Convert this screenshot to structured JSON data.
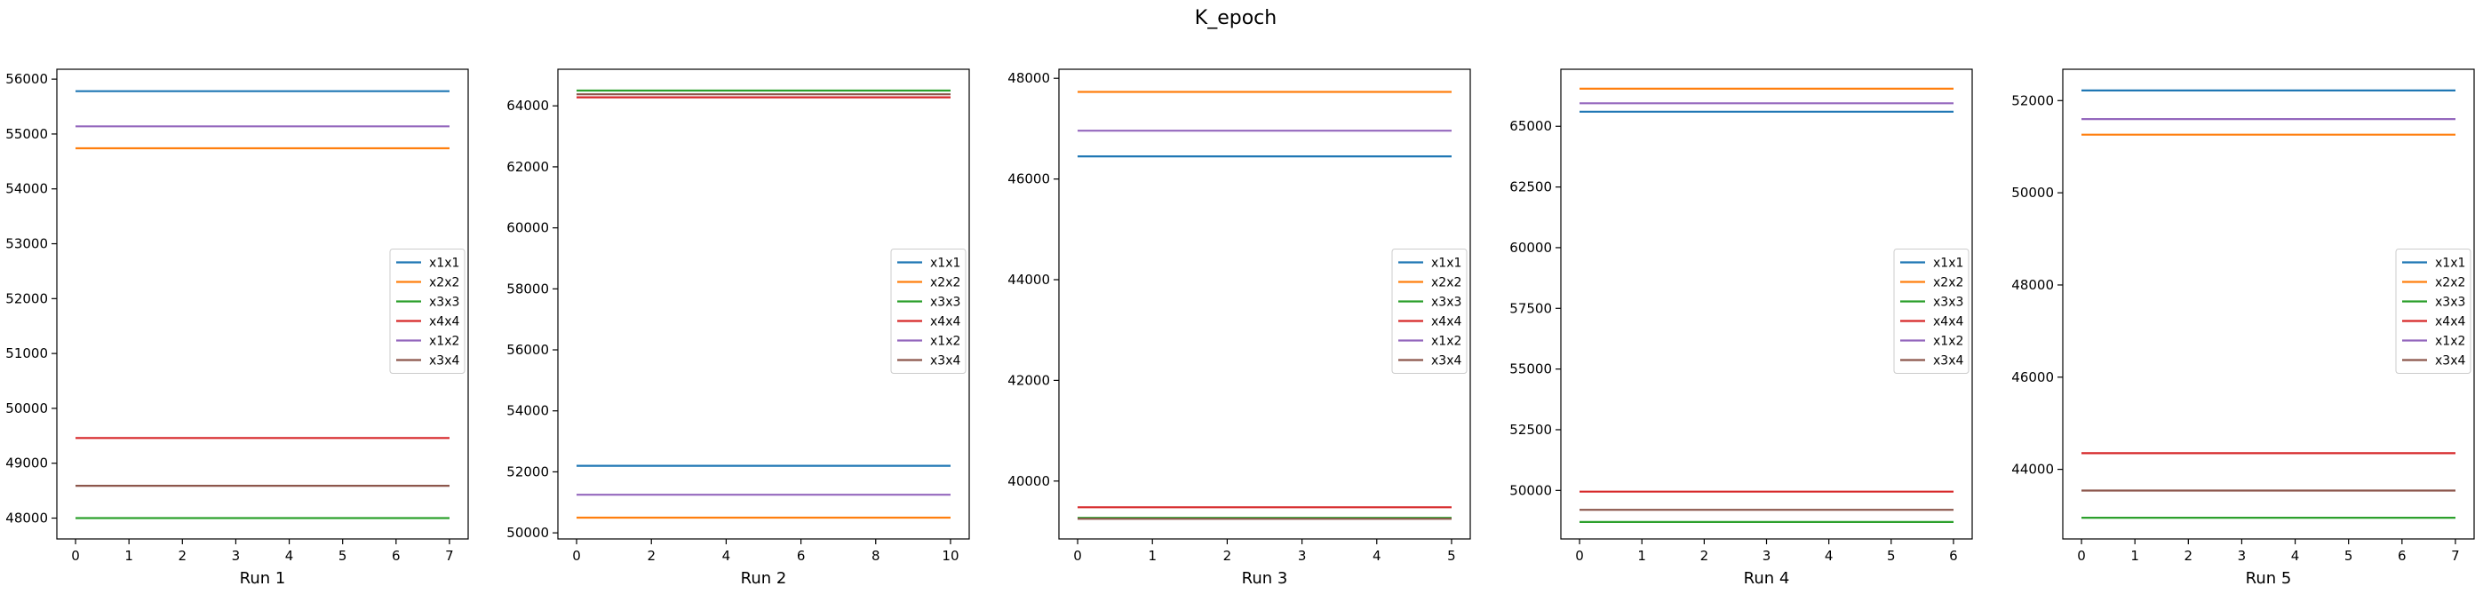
{
  "figure": {
    "title": "K_epoch"
  },
  "chart_data": [
    {
      "type": "line",
      "title": "",
      "xlabel": "Run 1",
      "ylabel": "",
      "x": [
        0,
        1,
        2,
        3,
        4,
        5,
        6,
        7
      ],
      "xticks": [
        0,
        1,
        2,
        3,
        4,
        5,
        6,
        7
      ],
      "yticks": [
        48000,
        49000,
        50000,
        51000,
        52000,
        53000,
        54000,
        55000,
        56000
      ],
      "ytick_labels": [
        "48000",
        "49000",
        "50000",
        "51000",
        "52000",
        "53000",
        "54000",
        "55000",
        "56000"
      ],
      "xlim": [
        -0.35,
        7.35
      ],
      "ylim": [
        47620,
        56180
      ],
      "legend": "center-right",
      "grid": false,
      "series": [
        {
          "name": "x1x1",
          "value": 55780,
          "color": "#1f77b4"
        },
        {
          "name": "x2x2",
          "value": 54740,
          "color": "#ff7f0e"
        },
        {
          "name": "x3x3",
          "value": 48000,
          "color": "#2ca02c"
        },
        {
          "name": "x4x4",
          "value": 49460,
          "color": "#d62728"
        },
        {
          "name": "x1x2",
          "value": 55140,
          "color": "#9467bd"
        },
        {
          "name": "x3x4",
          "value": 48590,
          "color": "#8c564b"
        }
      ]
    },
    {
      "type": "line",
      "title": "",
      "xlabel": "Run 2",
      "ylabel": "",
      "x": [
        0,
        1,
        2,
        3,
        4,
        5,
        6,
        7,
        8,
        9,
        10
      ],
      "xticks": [
        0,
        2,
        4,
        6,
        8,
        10
      ],
      "yticks": [
        50000,
        52000,
        54000,
        56000,
        58000,
        60000,
        62000,
        64000
      ],
      "ytick_labels": [
        "50000",
        "52000",
        "54000",
        "56000",
        "58000",
        "60000",
        "62000",
        "64000"
      ],
      "xlim": [
        -0.5,
        10.5
      ],
      "ylim": [
        49800,
        65200
      ],
      "legend": "center-right",
      "grid": false,
      "series": [
        {
          "name": "x1x1",
          "value": 52200,
          "color": "#1f77b4"
        },
        {
          "name": "x2x2",
          "value": 50500,
          "color": "#ff7f0e"
        },
        {
          "name": "x3x3",
          "value": 64500,
          "color": "#2ca02c"
        },
        {
          "name": "x4x4",
          "value": 64280,
          "color": "#d62728"
        },
        {
          "name": "x1x2",
          "value": 51250,
          "color": "#9467bd"
        },
        {
          "name": "x3x4",
          "value": 64380,
          "color": "#8c564b"
        }
      ]
    },
    {
      "type": "line",
      "title": "",
      "xlabel": "Run 3",
      "ylabel": "",
      "x": [
        0,
        1,
        2,
        3,
        4,
        5
      ],
      "xticks": [
        0,
        1,
        2,
        3,
        4,
        5
      ],
      "yticks": [
        40000,
        42000,
        44000,
        46000,
        48000
      ],
      "ytick_labels": [
        "40000",
        "42000",
        "44000",
        "46000",
        "48000"
      ],
      "xlim": [
        -0.25,
        5.25
      ],
      "ylim": [
        38850,
        48180
      ],
      "legend": "center-right",
      "grid": false,
      "series": [
        {
          "name": "x1x1",
          "value": 46450,
          "color": "#1f77b4"
        },
        {
          "name": "x2x2",
          "value": 47730,
          "color": "#ff7f0e"
        },
        {
          "name": "x3x3",
          "value": 39270,
          "color": "#2ca02c"
        },
        {
          "name": "x4x4",
          "value": 39480,
          "color": "#d62728"
        },
        {
          "name": "x1x2",
          "value": 46960,
          "color": "#9467bd"
        },
        {
          "name": "x3x4",
          "value": 39250,
          "color": "#8c564b"
        }
      ]
    },
    {
      "type": "line",
      "title": "",
      "xlabel": "Run 4",
      "ylabel": "",
      "x": [
        0,
        1,
        2,
        3,
        4,
        5,
        6
      ],
      "xticks": [
        0,
        1,
        2,
        3,
        4,
        5,
        6
      ],
      "yticks": [
        50000,
        52500,
        55000,
        57500,
        60000,
        62500,
        65000
      ],
      "ytick_labels": [
        "50000",
        "52500",
        "55000",
        "57500",
        "60000",
        "62500",
        "65000"
      ],
      "xlim": [
        -0.3,
        6.3
      ],
      "ylim": [
        48000,
        67350
      ],
      "legend": "center-right",
      "grid": false,
      "series": [
        {
          "name": "x1x1",
          "value": 65600,
          "color": "#1f77b4"
        },
        {
          "name": "x2x2",
          "value": 66550,
          "color": "#ff7f0e"
        },
        {
          "name": "x3x3",
          "value": 48700,
          "color": "#2ca02c"
        },
        {
          "name": "x4x4",
          "value": 49950,
          "color": "#d62728"
        },
        {
          "name": "x1x2",
          "value": 65950,
          "color": "#9467bd"
        },
        {
          "name": "x3x4",
          "value": 49200,
          "color": "#8c564b"
        }
      ]
    },
    {
      "type": "line",
      "title": "",
      "xlabel": "Run 5",
      "ylabel": "",
      "x": [
        0,
        1,
        2,
        3,
        4,
        5,
        6,
        7
      ],
      "xticks": [
        0,
        1,
        2,
        3,
        4,
        5,
        6,
        7
      ],
      "yticks": [
        44000,
        46000,
        48000,
        50000,
        52000
      ],
      "ytick_labels": [
        "44000",
        "46000",
        "48000",
        "50000",
        "52000"
      ],
      "xlim": [
        -0.35,
        7.35
      ],
      "ylim": [
        42490,
        52680
      ],
      "legend": "center-right",
      "grid": false,
      "series": [
        {
          "name": "x1x1",
          "value": 52220,
          "color": "#1f77b4"
        },
        {
          "name": "x2x2",
          "value": 51260,
          "color": "#ff7f0e"
        },
        {
          "name": "x3x3",
          "value": 42950,
          "color": "#2ca02c"
        },
        {
          "name": "x4x4",
          "value": 44350,
          "color": "#d62728"
        },
        {
          "name": "x1x2",
          "value": 51600,
          "color": "#9467bd"
        },
        {
          "name": "x3x4",
          "value": 43540,
          "color": "#8c564b"
        }
      ]
    }
  ]
}
